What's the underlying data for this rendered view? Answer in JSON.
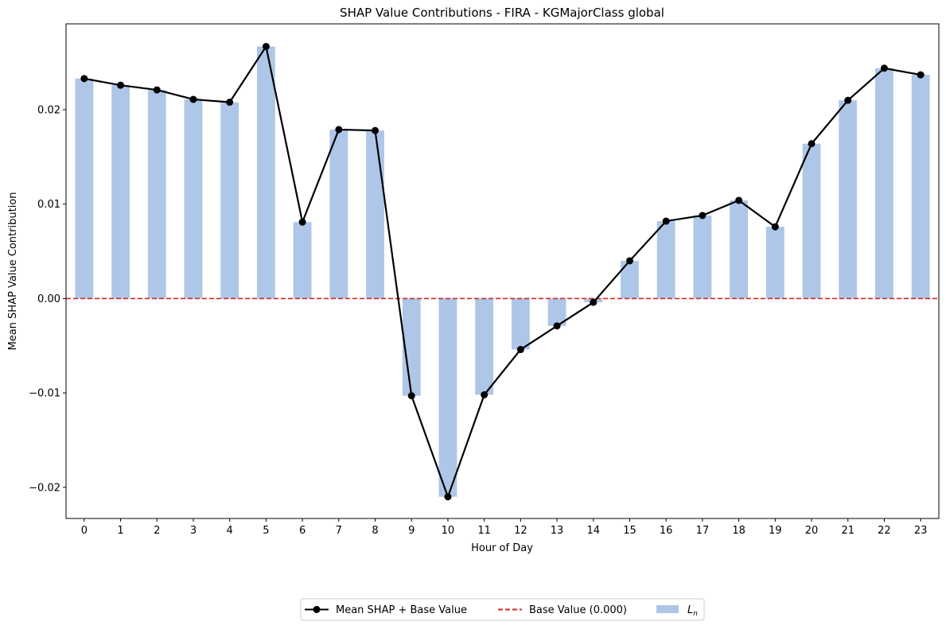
{
  "chart_data": {
    "type": "bar",
    "title": "SHAP Value Contributions - FIRA - KGMajorClass global",
    "xlabel": "Hour of Day",
    "ylabel": "Mean SHAP Value Contribution",
    "categories": [
      "0",
      "1",
      "2",
      "3",
      "4",
      "5",
      "6",
      "7",
      "8",
      "9",
      "10",
      "11",
      "12",
      "13",
      "14",
      "15",
      "16",
      "17",
      "18",
      "19",
      "20",
      "21",
      "22",
      "23"
    ],
    "ylim": [
      -0.0233,
      0.0291
    ],
    "yticks": [
      -0.02,
      -0.01,
      0.0,
      0.01,
      0.02
    ],
    "ytick_labels": [
      "−0.02",
      "−0.01",
      "0.00",
      "0.01",
      "0.02"
    ],
    "series": [
      {
        "name": "L",
        "name_subscript": "n",
        "kind": "bar",
        "color": "#aec7e8",
        "values": [
          0.0233,
          0.0226,
          0.0221,
          0.0211,
          0.0208,
          0.0267,
          0.0081,
          0.0179,
          0.0178,
          -0.0103,
          -0.021,
          -0.0102,
          -0.0054,
          -0.0029,
          -0.0004,
          0.004,
          0.0082,
          0.0088,
          0.0104,
          0.0076,
          0.0164,
          0.021,
          0.0244,
          0.0237
        ]
      },
      {
        "name": "Mean SHAP + Base Value",
        "kind": "line",
        "color": "#000000",
        "values": [
          0.0233,
          0.0226,
          0.0221,
          0.0211,
          0.0208,
          0.0267,
          0.0081,
          0.0179,
          0.0178,
          -0.0103,
          -0.021,
          -0.0102,
          -0.0054,
          -0.0029,
          -0.0004,
          0.004,
          0.0082,
          0.0088,
          0.0104,
          0.0076,
          0.0164,
          0.021,
          0.0244,
          0.0237
        ]
      }
    ],
    "base_line": {
      "name": "Base Value (0.000)",
      "value": 0.0,
      "color": "#d62728"
    },
    "grid": false,
    "legend": "bottom-center"
  }
}
